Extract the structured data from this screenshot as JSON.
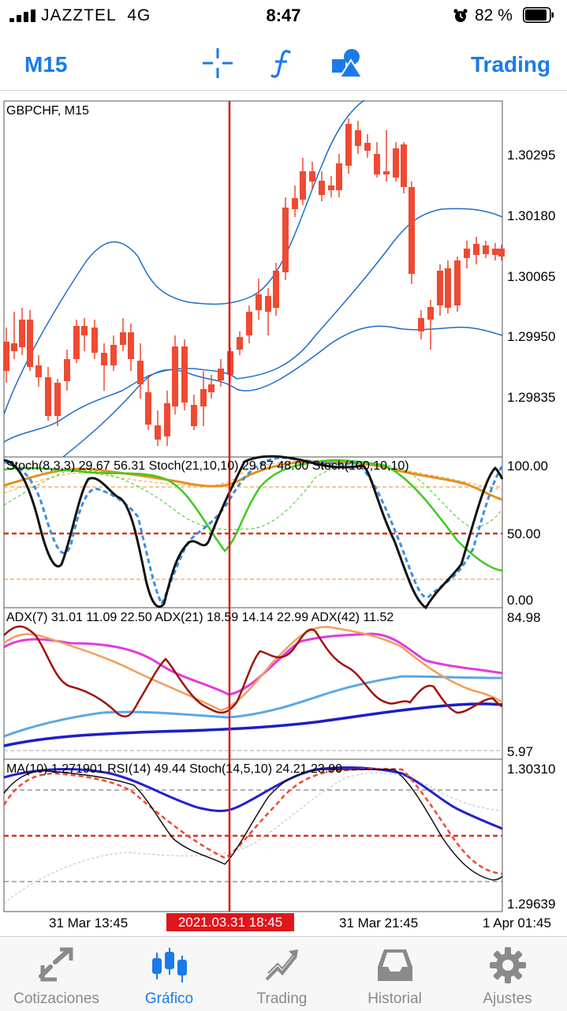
{
  "status": {
    "carrier": "JAZZTEL",
    "network": "4G",
    "time": "8:47",
    "battery": "82 %"
  },
  "toolbar": {
    "timeframe": "M15",
    "trading": "Trading",
    "icons": [
      "crosshair-icon",
      "function-icon",
      "objects-icon"
    ]
  },
  "chart": {
    "symbol_title": "GBPCHF, M15",
    "price_labels": [
      "1.30295",
      "1.30180",
      "1.30065",
      "1.29950",
      "1.29835"
    ],
    "stoch_title": "Stoch(8,3,3) 29.67 56.31 Stoch(21,10,10) 29.87 48.00 Stoch(100,10,10)",
    "stoch_levels": [
      "100.00",
      "50.00",
      "0.00"
    ],
    "adx_title": "ADX(7) 31.01 11.09 22.50 ADX(21) 18.59 14.14 22.99 ADX(42) 11.52",
    "adx_levels": [
      "84.98",
      "5.97"
    ],
    "ma_title": "MA(10) 1.271901 RSI(14) 49.44 Stoch(14,5,10) 24.21 23.90",
    "ma_levels": [
      "1.30310",
      "1.29639"
    ],
    "time_labels": [
      "31 Mar 13:45",
      "31 Mar 21:45",
      "1 Apr 01:45"
    ],
    "crosshair_time": "2021.03.31 18:45",
    "colors": {
      "bull": "#6ab42a",
      "bear": "#ef4a32",
      "band": "#1f6fc5",
      "crosshair": "#d81e1e"
    }
  },
  "tabs": [
    {
      "label": "Cotizaciones",
      "icon": "quotes-icon"
    },
    {
      "label": "Gráfico",
      "icon": "chart-candles-icon",
      "active": true
    },
    {
      "label": "Trading",
      "icon": "trading-icon"
    },
    {
      "label": "Historial",
      "icon": "history-inbox-icon"
    },
    {
      "label": "Ajustes",
      "icon": "settings-gear-icon"
    }
  ]
}
